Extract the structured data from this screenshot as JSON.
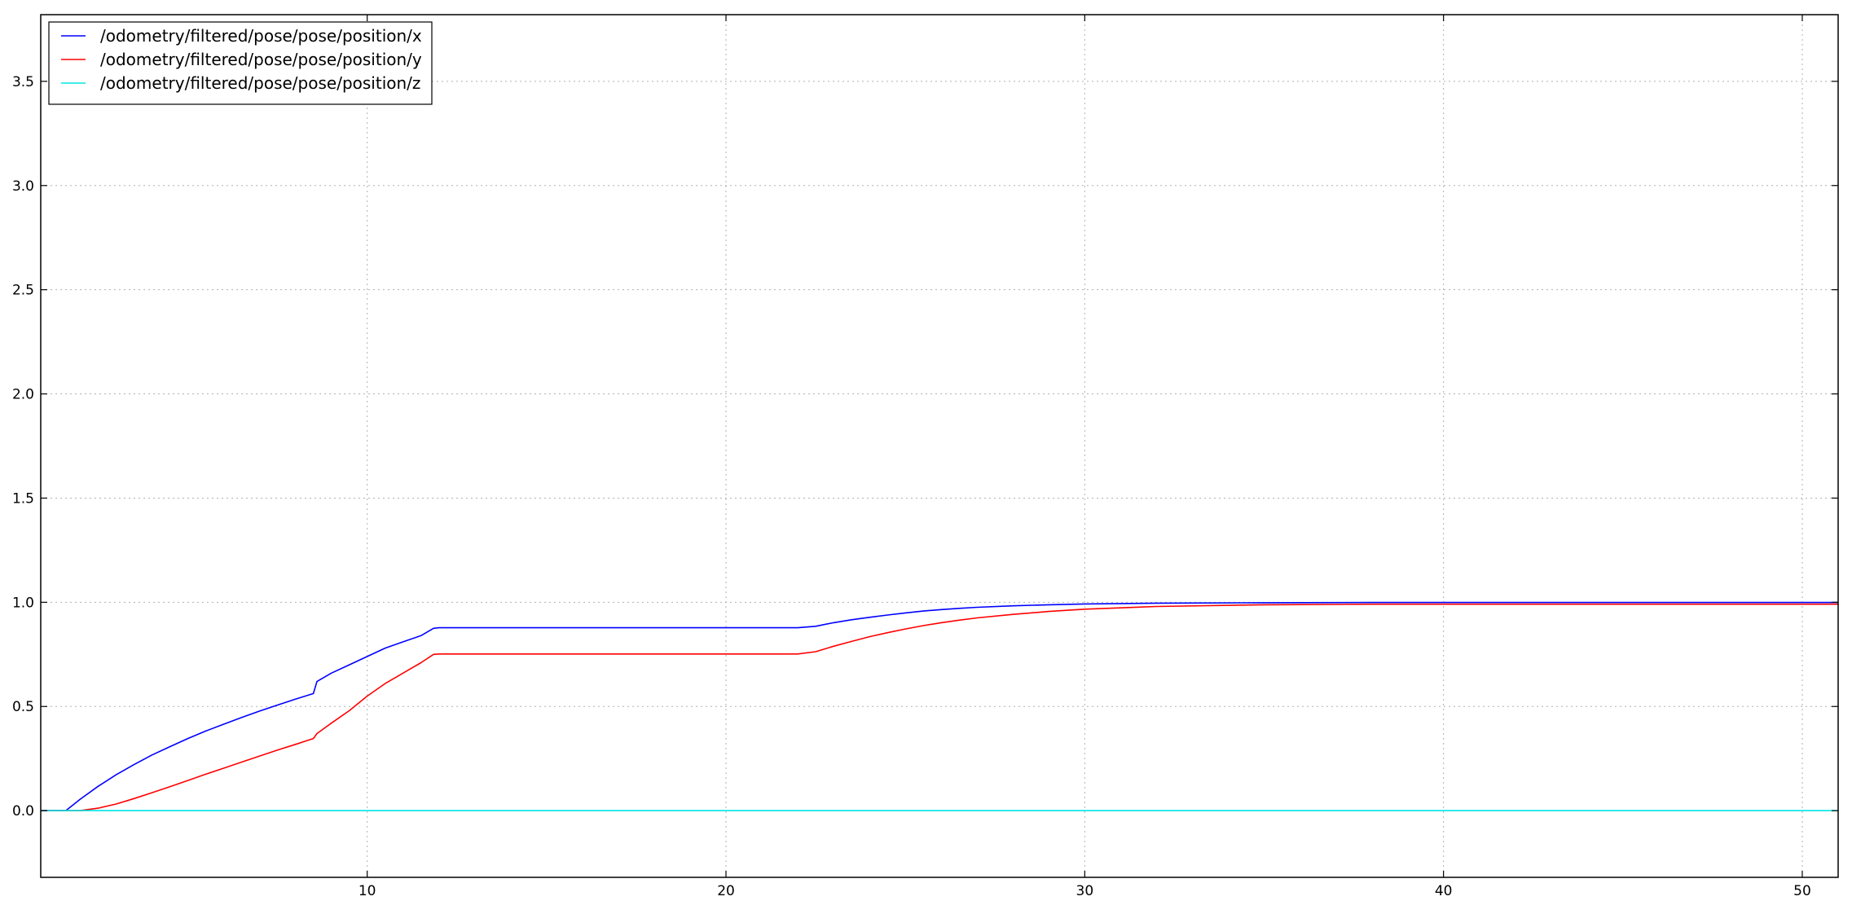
{
  "chart_data": {
    "type": "line",
    "title": "",
    "xlabel": "",
    "ylabel": "",
    "xlim": [
      0.9,
      51.0
    ],
    "ylim": [
      -0.32,
      3.82
    ],
    "grid": true,
    "legend_position": "top-left",
    "x_ticks": [
      10,
      20,
      30,
      40,
      50
    ],
    "x_tick_labels": [
      "10",
      "20",
      "30",
      "40",
      "50"
    ],
    "y_ticks": [
      0.0,
      0.5,
      1.0,
      1.5,
      2.0,
      2.5,
      3.0,
      3.5
    ],
    "y_tick_labels": [
      "0.0",
      "0.5",
      "1.0",
      "1.5",
      "2.0",
      "2.5",
      "3.0",
      "3.5"
    ],
    "series": [
      {
        "name": "/odometry/filtered/pose/pose/position/x",
        "color": "#0000ff",
        "x": [
          0.9,
          1.6,
          2.0,
          2.5,
          3.0,
          3.5,
          4.0,
          4.5,
          5.0,
          5.5,
          6.0,
          6.5,
          7.0,
          7.5,
          8.0,
          8.5,
          8.6,
          9.0,
          9.5,
          10.0,
          10.5,
          11.0,
          11.5,
          11.85,
          12.0,
          14.0,
          16.0,
          18.0,
          20.0,
          22.0,
          22.5,
          23.0,
          23.5,
          24.0,
          24.5,
          25.0,
          25.5,
          26.0,
          26.5,
          27.0,
          28.0,
          29.0,
          30.0,
          32.0,
          35.0,
          38.0,
          40.0,
          45.0,
          51.0
        ],
        "y": [
          0.0,
          0.0,
          0.055,
          0.117,
          0.172,
          0.221,
          0.267,
          0.307,
          0.346,
          0.382,
          0.415,
          0.447,
          0.478,
          0.507,
          0.535,
          0.562,
          0.62,
          0.66,
          0.7,
          0.74,
          0.78,
          0.81,
          0.84,
          0.875,
          0.878,
          0.878,
          0.878,
          0.878,
          0.878,
          0.878,
          0.885,
          0.902,
          0.916,
          0.928,
          0.939,
          0.949,
          0.958,
          0.965,
          0.971,
          0.976,
          0.983,
          0.988,
          0.992,
          0.996,
          0.998,
          0.999,
          0.999,
          0.999,
          0.999
        ]
      },
      {
        "name": "/odometry/filtered/pose/pose/position/y",
        "color": "#ff0000",
        "x": [
          0.9,
          2.0,
          2.5,
          3.0,
          3.5,
          4.0,
          4.5,
          5.0,
          5.5,
          6.0,
          6.5,
          7.0,
          7.5,
          8.0,
          8.5,
          8.6,
          9.0,
          9.5,
          10.0,
          10.5,
          11.0,
          11.5,
          11.85,
          12.0,
          14.0,
          16.0,
          18.0,
          20.0,
          22.0,
          22.5,
          23.0,
          23.5,
          24.0,
          24.5,
          25.0,
          25.5,
          26.0,
          26.5,
          27.0,
          28.0,
          29.0,
          30.0,
          32.0,
          35.0,
          38.0,
          40.0,
          45.0,
          51.0
        ],
        "y": [
          0.0,
          0.0,
          0.012,
          0.032,
          0.058,
          0.086,
          0.115,
          0.145,
          0.175,
          0.204,
          0.233,
          0.262,
          0.291,
          0.318,
          0.346,
          0.37,
          0.42,
          0.48,
          0.55,
          0.61,
          0.66,
          0.71,
          0.75,
          0.752,
          0.752,
          0.752,
          0.752,
          0.752,
          0.752,
          0.763,
          0.789,
          0.812,
          0.835,
          0.854,
          0.872,
          0.888,
          0.902,
          0.914,
          0.925,
          0.942,
          0.956,
          0.967,
          0.98,
          0.988,
          0.991,
          0.991,
          0.991,
          0.991
        ]
      },
      {
        "name": "/odometry/filtered/pose/pose/position/z",
        "color": "#00e5e5",
        "x": [
          0.9,
          51.0
        ],
        "y": [
          0.0,
          0.0
        ]
      }
    ]
  }
}
